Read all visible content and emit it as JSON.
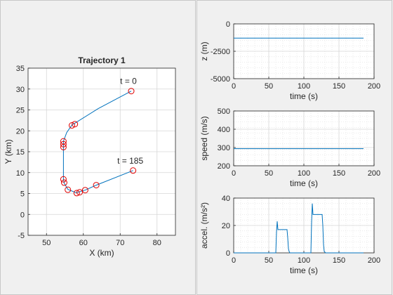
{
  "chart_data": [
    {
      "id": "traj",
      "type": "scatter",
      "title": "Trajectory 1",
      "xlabel": "X (km)",
      "ylabel": "Y (km)",
      "xlim": [
        45,
        85
      ],
      "ylim": [
        -5,
        35
      ],
      "xticks": [
        50,
        60,
        70,
        80
      ],
      "yticks": [
        -5,
        0,
        5,
        10,
        15,
        20,
        25,
        30,
        35
      ],
      "grid": true,
      "path": [
        [
          73.0,
          29.5
        ],
        [
          64.0,
          25.3
        ],
        [
          57.5,
          21.7
        ],
        [
          57.0,
          21.5
        ],
        [
          55.5,
          19.6
        ],
        [
          54.6,
          17.5
        ],
        [
          54.6,
          16.5
        ],
        [
          54.6,
          12.0
        ],
        [
          54.6,
          8.5
        ],
        [
          54.8,
          7.5
        ],
        [
          55.8,
          6.0
        ],
        [
          58.0,
          5.2
        ],
        [
          60.5,
          5.8
        ],
        [
          63.5,
          7.0
        ],
        [
          73.5,
          10.5
        ]
      ],
      "waypoints": [
        [
          73.0,
          29.5
        ],
        [
          57.7,
          21.6
        ],
        [
          56.9,
          21.3
        ],
        [
          54.6,
          17.5
        ],
        [
          54.6,
          16.8
        ],
        [
          54.6,
          16.1
        ],
        [
          54.6,
          8.4
        ],
        [
          54.8,
          7.6
        ],
        [
          55.8,
          5.9
        ],
        [
          58.2,
          5.1
        ],
        [
          59.0,
          5.3
        ],
        [
          60.5,
          5.8
        ],
        [
          63.5,
          7.0
        ],
        [
          73.5,
          10.5
        ]
      ],
      "annotations": [
        {
          "text": "t = 0",
          "x": 73,
          "y": 29.5
        },
        {
          "text": "t = 185",
          "x": 73.5,
          "y": 10.5
        }
      ]
    },
    {
      "id": "z",
      "type": "line",
      "xlabel": "time (s)",
      "ylabel": "z (m)",
      "xlim": [
        0,
        200
      ],
      "ylim": [
        -5000,
        0
      ],
      "reverse_y": true,
      "xticks": [
        0,
        50,
        100,
        150,
        200
      ],
      "yticks": [
        0,
        -2500,
        -5000
      ],
      "ytick_labels": [
        "0",
        "-2500",
        "-5000"
      ],
      "grid": true,
      "series": [
        {
          "x": [
            0,
            185
          ],
          "y": [
            -1300,
            -1300
          ]
        }
      ]
    },
    {
      "id": "speed",
      "type": "line",
      "xlabel": "time (s)",
      "ylabel": "speed (m/s)",
      "xlim": [
        0,
        200
      ],
      "ylim": [
        200,
        500
      ],
      "xticks": [
        0,
        50,
        100,
        150,
        200
      ],
      "yticks": [
        200,
        300,
        400,
        500
      ],
      "ytick_labels": [
        "200",
        "300",
        "400",
        "500"
      ],
      "grid": true,
      "series": [
        {
          "x": [
            0,
            185
          ],
          "y": [
            294,
            294
          ]
        }
      ]
    },
    {
      "id": "accel",
      "type": "line",
      "xlabel": "time (s)",
      "ylabel": "accel. (m/s²)",
      "xlim": [
        0,
        200
      ],
      "ylim": [
        0,
        40
      ],
      "xticks": [
        0,
        50,
        100,
        150,
        200
      ],
      "yticks": [
        0,
        20,
        40
      ],
      "ytick_labels": [
        "0",
        "20",
        "40"
      ],
      "grid": true,
      "series": [
        {
          "x": [
            0,
            60,
            61,
            62,
            63,
            76,
            77,
            78,
            79,
            80,
            110,
            111,
            112,
            113,
            126,
            127,
            128,
            129,
            131,
            185
          ],
          "y": [
            0,
            0,
            15,
            23,
            17,
            17,
            11,
            3,
            1,
            0,
            0,
            22,
            36,
            28,
            28,
            20,
            6,
            1,
            0,
            0
          ]
        }
      ]
    }
  ],
  "colors": {
    "line": "#0072bd",
    "marker": "#e00000",
    "axis": "#262626",
    "grid": "#d7d7d7",
    "panel_bg": "#f0f0f0",
    "axes_bg": "#ffffff",
    "divider": "#c8c8c8"
  }
}
